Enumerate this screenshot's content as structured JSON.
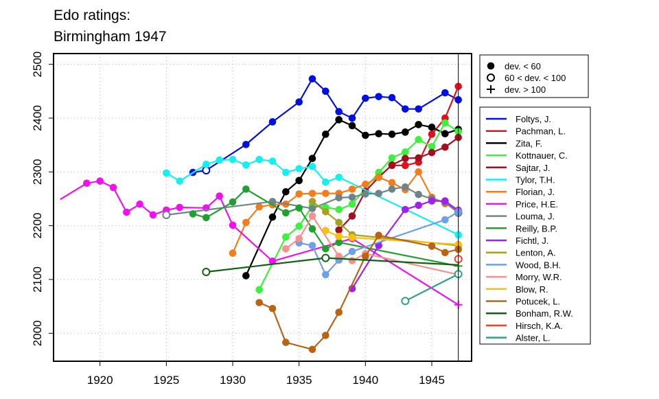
{
  "colors": {
    "Foltys": "#0010e0",
    "Pachman": "#e0101c",
    "Zita": "#000000",
    "Kottnauer": "#3cf03c",
    "Sajtar": "#a01020",
    "Tylor": "#14f0f0",
    "Florian": "#f47c1c",
    "Price": "#f010f0",
    "Louma": "#6e8488",
    "Reilly": "#20a030",
    "Fichtl": "#a020f0",
    "Lenton": "#a8a020",
    "Wood": "#6ca0e8",
    "Morry": "#f89090",
    "Blow": "#f8c010",
    "Potucek": "#b86414",
    "Bonham": "#106010",
    "Hirsch": "#f04030",
    "Alster": "#30a080"
  },
  "chart_data": {
    "type": "line",
    "title_lines": [
      "Edo ratings:",
      "Birmingham 1947"
    ],
    "xlabel": "",
    "ylabel": "",
    "xlim": [
      1916.5,
      1948
    ],
    "ylim": [
      1948,
      2520
    ],
    "xticks": [
      1920,
      1925,
      1930,
      1935,
      1940,
      1945
    ],
    "yticks": [
      2000,
      2100,
      2200,
      2300,
      2400,
      2500
    ],
    "grid": "dotted",
    "vline_x": 1947,
    "legend_symbols": [
      {
        "marker": "filled",
        "label": "dev. < 60"
      },
      {
        "marker": "open",
        "label": "60 < dev. < 100"
      },
      {
        "marker": "plus",
        "label": "dev. > 100"
      }
    ],
    "series": [
      {
        "name": "Foltys, J.",
        "color_key": "Foltys",
        "points": [
          [
            1927,
            2299,
            "f"
          ],
          [
            1928,
            2303,
            "o"
          ],
          [
            1931,
            2351,
            "f"
          ],
          [
            1933,
            2393,
            "f"
          ],
          [
            1935,
            2430,
            "f"
          ],
          [
            1936,
            2473,
            "f"
          ],
          [
            1937,
            2450,
            "f"
          ],
          [
            1938,
            2412,
            "f"
          ],
          [
            1939,
            2400,
            "f"
          ],
          [
            1940,
            2437,
            "f"
          ],
          [
            1941,
            2440,
            "f"
          ],
          [
            1942,
            2438,
            "f"
          ],
          [
            1943,
            2417,
            "f"
          ],
          [
            1944,
            2417,
            "f"
          ],
          [
            1946,
            2447,
            "f"
          ],
          [
            1947,
            2434,
            "f"
          ]
        ]
      },
      {
        "name": "Pachman, L.",
        "color_key": "Pachman",
        "points": [
          [
            1942,
            2312,
            "f"
          ],
          [
            1943,
            2312,
            "f"
          ],
          [
            1944,
            2318,
            "f"
          ],
          [
            1945,
            2370,
            "f"
          ],
          [
            1946,
            2400,
            "f"
          ],
          [
            1947,
            2459,
            "f"
          ]
        ]
      },
      {
        "name": "Zita, F.",
        "color_key": "Zita",
        "points": [
          [
            1931,
            2107,
            "f"
          ],
          [
            1933,
            2216,
            "f"
          ],
          [
            1934,
            2263,
            "f"
          ],
          [
            1935,
            2284,
            "f"
          ],
          [
            1936,
            2325,
            "f"
          ],
          [
            1937,
            2370,
            "f"
          ],
          [
            1938,
            2397,
            "f"
          ],
          [
            1939,
            2386,
            "f"
          ],
          [
            1940,
            2368,
            "f"
          ],
          [
            1941,
            2371,
            "f"
          ],
          [
            1942,
            2370,
            "f"
          ],
          [
            1943,
            2374,
            "f"
          ],
          [
            1944,
            2388,
            "f"
          ],
          [
            1945,
            2383,
            "f"
          ],
          [
            1946,
            2371,
            "f"
          ],
          [
            1947,
            2379,
            "f"
          ]
        ]
      },
      {
        "name": "Kottnauer, C.",
        "color_key": "Kottnauer",
        "points": [
          [
            1932,
            2081,
            "f"
          ],
          [
            1934,
            2179,
            "f"
          ],
          [
            1935,
            2199,
            "f"
          ],
          [
            1936,
            2237,
            "f"
          ],
          [
            1937,
            2234,
            "f"
          ],
          [
            1938,
            2230,
            "f"
          ],
          [
            1939,
            2240,
            "f"
          ],
          [
            1941,
            2299,
            "f"
          ],
          [
            1942,
            2326,
            "f"
          ],
          [
            1943,
            2337,
            "f"
          ],
          [
            1944,
            2360,
            "f"
          ],
          [
            1945,
            2347,
            "f"
          ],
          [
            1946,
            2391,
            "f"
          ],
          [
            1947,
            2375,
            "f"
          ]
        ]
      },
      {
        "name": "Sajtar, J.",
        "color_key": "Sajtar",
        "points": [
          [
            1938,
            2192,
            "f"
          ],
          [
            1939,
            2218,
            "f"
          ],
          [
            1940,
            2264,
            "f"
          ],
          [
            1941,
            2290,
            "f"
          ],
          [
            1942,
            2313,
            "f"
          ],
          [
            1943,
            2325,
            "f"
          ],
          [
            1944,
            2326,
            "f"
          ],
          [
            1945,
            2336,
            "f"
          ],
          [
            1946,
            2346,
            "f"
          ],
          [
            1947,
            2364,
            "f"
          ]
        ]
      },
      {
        "name": "Tylor, T.H.",
        "color_key": "Tylor",
        "points": [
          [
            1925,
            2298,
            "f"
          ],
          [
            1926,
            2283,
            "f"
          ],
          [
            1928,
            2314,
            "f"
          ],
          [
            1929,
            2322,
            "f"
          ],
          [
            1930,
            2323,
            "f"
          ],
          [
            1931,
            2313,
            "f"
          ],
          [
            1932,
            2323,
            "f"
          ],
          [
            1933,
            2320,
            "f"
          ],
          [
            1934,
            2299,
            "f"
          ],
          [
            1935,
            2306,
            "f"
          ],
          [
            1936,
            2310,
            "f"
          ],
          [
            1937,
            2281,
            "f"
          ],
          [
            1938,
            2290,
            "f"
          ],
          [
            1947,
            2183,
            "f"
          ]
        ]
      },
      {
        "name": "Florian, J.",
        "color_key": "Florian",
        "points": [
          [
            1930,
            2149,
            "f"
          ],
          [
            1931,
            2206,
            "f"
          ],
          [
            1932,
            2235,
            "f"
          ],
          [
            1933,
            2239,
            "f"
          ],
          [
            1934,
            2240,
            "f"
          ],
          [
            1935,
            2259,
            "f"
          ],
          [
            1936,
            2260,
            "f"
          ],
          [
            1937,
            2260,
            "f"
          ],
          [
            1938,
            2260,
            "f"
          ],
          [
            1939,
            2268,
            "f"
          ],
          [
            1940,
            2277,
            "f"
          ],
          [
            1941,
            2290,
            "f"
          ],
          [
            1942,
            2280,
            "f"
          ],
          [
            1943,
            2267,
            "f"
          ],
          [
            1944,
            2300,
            "f"
          ],
          [
            1945,
            2253,
            "f"
          ],
          [
            1946,
            2241,
            "f"
          ],
          [
            1947,
            2229,
            "f"
          ]
        ]
      },
      {
        "name": "Price, H.E.",
        "color_key": "Price",
        "points": [
          [
            1917,
            2249,
            "n"
          ],
          [
            1919,
            2279,
            "f"
          ],
          [
            1920,
            2283,
            "f"
          ],
          [
            1921,
            2271,
            "f"
          ],
          [
            1922,
            2225,
            "f"
          ],
          [
            1923,
            2240,
            "f"
          ],
          [
            1924,
            2220,
            "f"
          ],
          [
            1925,
            2229,
            "f"
          ],
          [
            1926,
            2234,
            "f"
          ],
          [
            1928,
            2233,
            "f"
          ],
          [
            1929,
            2255,
            "f"
          ],
          [
            1930,
            2201,
            "f"
          ],
          [
            1933,
            2134,
            "f"
          ],
          [
            1939,
            2176,
            "f"
          ],
          [
            1947,
            2053,
            "p"
          ]
        ]
      },
      {
        "name": "Louma, J.",
        "color_key": "Louma",
        "points": [
          [
            1925,
            2220,
            "o"
          ],
          [
            1933,
            2245,
            "f"
          ],
          [
            1936,
            2232,
            "f"
          ],
          [
            1938,
            2252,
            "f"
          ],
          [
            1939,
            2253,
            "f"
          ],
          [
            1940,
            2259,
            "f"
          ],
          [
            1941,
            2260,
            "f"
          ],
          [
            1942,
            2268,
            "f"
          ],
          [
            1943,
            2272,
            "f"
          ],
          [
            1944,
            2258,
            "f"
          ],
          [
            1945,
            2250,
            "f"
          ],
          [
            1946,
            2243,
            "f"
          ],
          [
            1947,
            2224,
            "o"
          ]
        ]
      },
      {
        "name": "Reilly, B.P.",
        "color_key": "Reilly",
        "points": [
          [
            1927,
            2222,
            "f"
          ],
          [
            1928,
            2215,
            "f"
          ],
          [
            1930,
            2244,
            "f"
          ],
          [
            1931,
            2268,
            "f"
          ],
          [
            1934,
            2224,
            "f"
          ],
          [
            1935,
            2233,
            "f"
          ],
          [
            1936,
            2194,
            "f"
          ],
          [
            1937,
            2157,
            "f"
          ],
          [
            1938,
            2169,
            "f"
          ],
          [
            1947,
            2125,
            "p"
          ]
        ]
      },
      {
        "name": "Fichtl, J.",
        "color_key": "Fichtl",
        "points": [
          [
            1939,
            2083,
            "f"
          ],
          [
            1941,
            2163,
            "f"
          ],
          [
            1943,
            2230,
            "f"
          ],
          [
            1944,
            2238,
            "f"
          ],
          [
            1945,
            2246,
            "f"
          ],
          [
            1946,
            2246,
            "f"
          ],
          [
            1947,
            2228,
            "f"
          ]
        ]
      },
      {
        "name": "Lenton, A.",
        "color_key": "Lenton",
        "points": [
          [
            1936,
            2245,
            "f"
          ],
          [
            1937,
            2226,
            "f"
          ],
          [
            1938,
            2206,
            "f"
          ],
          [
            1939,
            2183,
            "f"
          ],
          [
            1947,
            2163,
            "f"
          ]
        ]
      },
      {
        "name": "Wood, B.H.",
        "color_key": "Wood",
        "points": [
          [
            1935,
            2168,
            "f"
          ],
          [
            1936,
            2163,
            "f"
          ],
          [
            1937,
            2109,
            "f"
          ],
          [
            1938,
            2136,
            "f"
          ],
          [
            1939,
            2152,
            "f"
          ],
          [
            1946,
            2211,
            "f"
          ],
          [
            1947,
            2226,
            "f"
          ]
        ]
      },
      {
        "name": "Morry, W.R.",
        "color_key": "Morry",
        "points": [
          [
            1934,
            2157,
            "f"
          ],
          [
            1935,
            2176,
            "f"
          ],
          [
            1936,
            2218,
            "f"
          ],
          [
            1938,
            2143,
            "f"
          ],
          [
            1939,
            2135,
            "f"
          ],
          [
            1940,
            2148,
            "f"
          ],
          [
            1947,
            2109,
            "n"
          ]
        ]
      },
      {
        "name": "Blow, R.",
        "color_key": "Blow",
        "points": [
          [
            1937,
            2191,
            "f"
          ],
          [
            1938,
            2180,
            "f"
          ],
          [
            1939,
            2178,
            "f"
          ],
          [
            1947,
            2165,
            "f"
          ]
        ]
      },
      {
        "name": "Potucek, L.",
        "color_key": "Potucek",
        "points": [
          [
            1932,
            2057,
            "f"
          ],
          [
            1933,
            2046,
            "f"
          ],
          [
            1934,
            1983,
            "f"
          ],
          [
            1936,
            1970,
            "f"
          ],
          [
            1937,
            1996,
            "f"
          ],
          [
            1938,
            2039,
            "f"
          ],
          [
            1940,
            2143,
            "f"
          ],
          [
            1941,
            2182,
            "f"
          ],
          [
            1945,
            2162,
            "f"
          ],
          [
            1946,
            2150,
            "f"
          ],
          [
            1947,
            2156,
            "f"
          ]
        ]
      },
      {
        "name": "Bonham, R.W.",
        "color_key": "Bonham",
        "points": [
          [
            1928,
            2114,
            "o"
          ],
          [
            1937,
            2140,
            "o"
          ],
          [
            1947,
            2127,
            "n"
          ]
        ]
      },
      {
        "name": "Hirsch, K.A.",
        "color_key": "Hirsch",
        "points": [
          [
            1947,
            2138,
            "o"
          ]
        ]
      },
      {
        "name": "Alster, L.",
        "color_key": "Alster",
        "points": [
          [
            1943,
            2060,
            "o"
          ],
          [
            1947,
            2110,
            "o"
          ]
        ]
      }
    ]
  }
}
